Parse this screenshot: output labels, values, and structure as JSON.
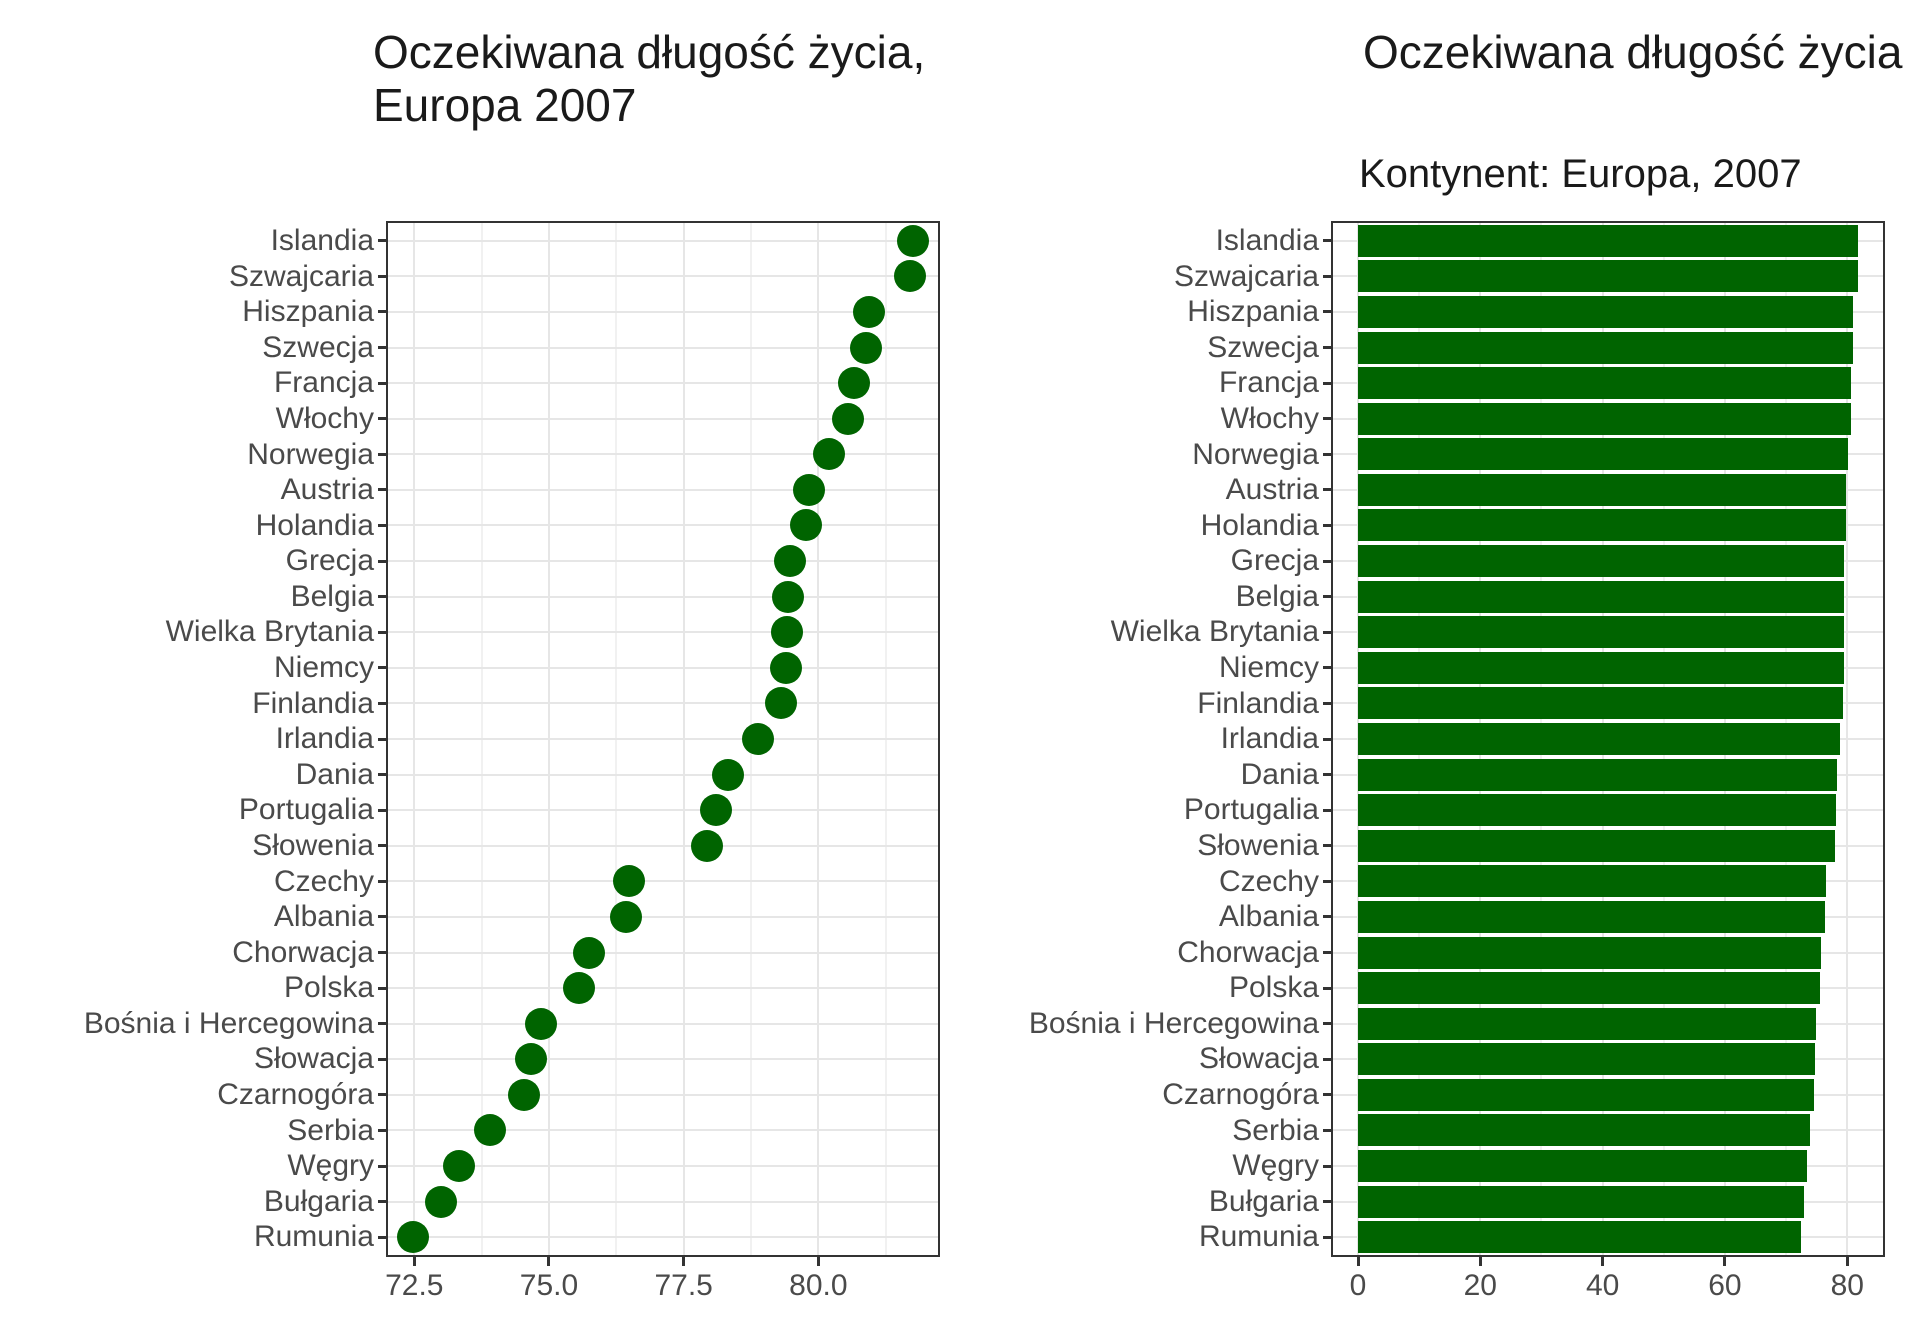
{
  "page": {
    "background": "#ffffff"
  },
  "chart_data": [
    {
      "type": "scatter",
      "orientation": "horizontal-dotplot",
      "title": "Oczekiwana długość życia, Europa 2007",
      "title_lines": [
        "Oczekiwana długość życia,",
        "Europa 2007"
      ],
      "subtitle": "",
      "xlabel": "",
      "ylabel": "",
      "legend": "none",
      "grid": true,
      "point_color": "#006400",
      "categories": [
        "Islandia",
        "Szwajcaria",
        "Hiszpania",
        "Szwecja",
        "Francja",
        "Włochy",
        "Norwegia",
        "Austria",
        "Holandia",
        "Grecja",
        "Belgia",
        "Wielka Brytania",
        "Niemcy",
        "Finlandia",
        "Irlandia",
        "Dania",
        "Portugalia",
        "Słowenia",
        "Czechy",
        "Albania",
        "Chorwacja",
        "Polska",
        "Bośnia i Hercegowina",
        "Słowacja",
        "Czarnogóra",
        "Serbia",
        "Węgry",
        "Bułgaria",
        "Rumunia"
      ],
      "values": [
        81.757,
        81.701,
        80.941,
        80.884,
        80.657,
        80.546,
        80.196,
        79.829,
        79.762,
        79.483,
        79.441,
        79.425,
        79.406,
        79.313,
        78.885,
        78.332,
        78.098,
        77.926,
        76.486,
        76.423,
        75.748,
        75.563,
        74.852,
        74.663,
        74.543,
        73.904,
        73.338,
        73.005,
        72.476
      ],
      "xlim": [
        72.012,
        82.221
      ],
      "xticks": [
        72.5,
        75.0,
        77.5,
        80.0
      ],
      "xtick_labels": [
        "72.5",
        "75.0",
        "77.5",
        "80.0"
      ],
      "xminor": [
        73.75,
        76.25,
        78.75,
        81.25
      ]
    },
    {
      "type": "bar",
      "orientation": "horizontal",
      "title": "Oczekiwana długość życia",
      "subtitle": "Kontynent: Europa, 2007",
      "xlabel": "",
      "ylabel": "",
      "legend": "none",
      "grid": true,
      "bar_color": "#006400",
      "categories": [
        "Islandia",
        "Szwajcaria",
        "Hiszpania",
        "Szwecja",
        "Francja",
        "Włochy",
        "Norwegia",
        "Austria",
        "Holandia",
        "Grecja",
        "Belgia",
        "Wielka Brytania",
        "Niemcy",
        "Finlandia",
        "Irlandia",
        "Dania",
        "Portugalia",
        "Słowenia",
        "Czechy",
        "Albania",
        "Chorwacja",
        "Polska",
        "Bośnia i Hercegowina",
        "Słowacja",
        "Czarnogóra",
        "Serbia",
        "Węgry",
        "Bułgaria",
        "Rumunia"
      ],
      "values": [
        81.757,
        81.701,
        80.941,
        80.884,
        80.657,
        80.546,
        80.196,
        79.829,
        79.762,
        79.483,
        79.441,
        79.425,
        79.406,
        79.313,
        78.885,
        78.332,
        78.098,
        77.926,
        76.486,
        76.423,
        75.748,
        75.563,
        74.852,
        74.663,
        74.543,
        73.904,
        73.338,
        73.005,
        72.476
      ],
      "xlim": [
        -4.088,
        85.845
      ],
      "xticks": [
        0,
        20,
        40,
        60,
        80
      ],
      "xtick_labels": [
        "0",
        "20",
        "40",
        "60",
        "80"
      ],
      "xminor": [
        10,
        30,
        50,
        70
      ]
    }
  ],
  "colors": {
    "mark": "#006400",
    "panel_border": "#333333",
    "grid_major": "#e6e6e6",
    "grid_minor": "#f1f1f1",
    "axis_text": "#4a4a4a",
    "title_text": "#1a1a1a"
  }
}
